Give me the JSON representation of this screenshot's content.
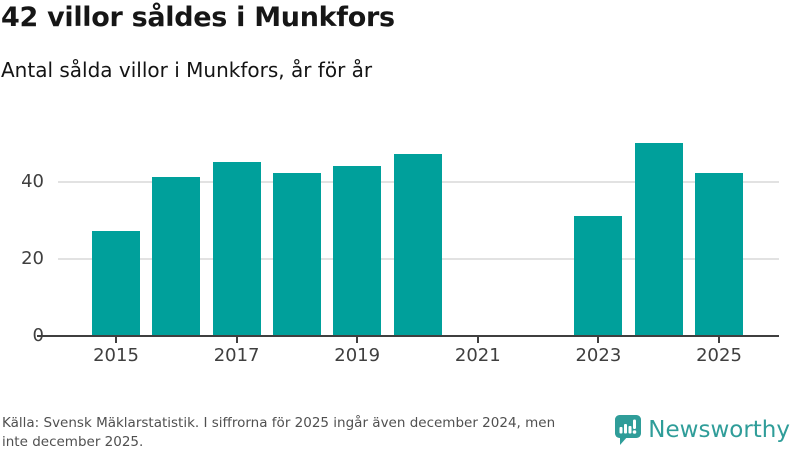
{
  "chart_data": {
    "type": "bar",
    "title": "42 villor såldes i Munkfors",
    "subtitle": "Antal sålda villor i Munkfors, år för år",
    "x": [
      2015,
      2016,
      2017,
      2018,
      2019,
      2020,
      2021,
      2022,
      2023,
      2024,
      2025
    ],
    "values": [
      27,
      41,
      45,
      42,
      44,
      47,
      null,
      null,
      31,
      50,
      42
    ],
    "xticks": [
      2015,
      2017,
      2019,
      2021,
      2023,
      2025
    ],
    "yticks": [
      0,
      20,
      40
    ],
    "ylim": [
      0,
      52
    ],
    "xlabel": "",
    "ylabel": "",
    "grid": "horizontal",
    "legend": "none",
    "bar_color": "#00a09b",
    "gridline_color": "#e2e2e2",
    "axis_color": "#3f3f3f"
  },
  "footer": {
    "source_line1": "Källa: Svensk Mäklarstatistik. I siffrorna för 2025 ingår även december 2024, men",
    "source_line2": "inte december 2025.",
    "logo_text": "Newsworthy"
  },
  "colors": {
    "bar_teal": "#00a09b",
    "logo_teal": "#2f9d99",
    "title_text": "#161616",
    "muted_text": "#505050"
  }
}
